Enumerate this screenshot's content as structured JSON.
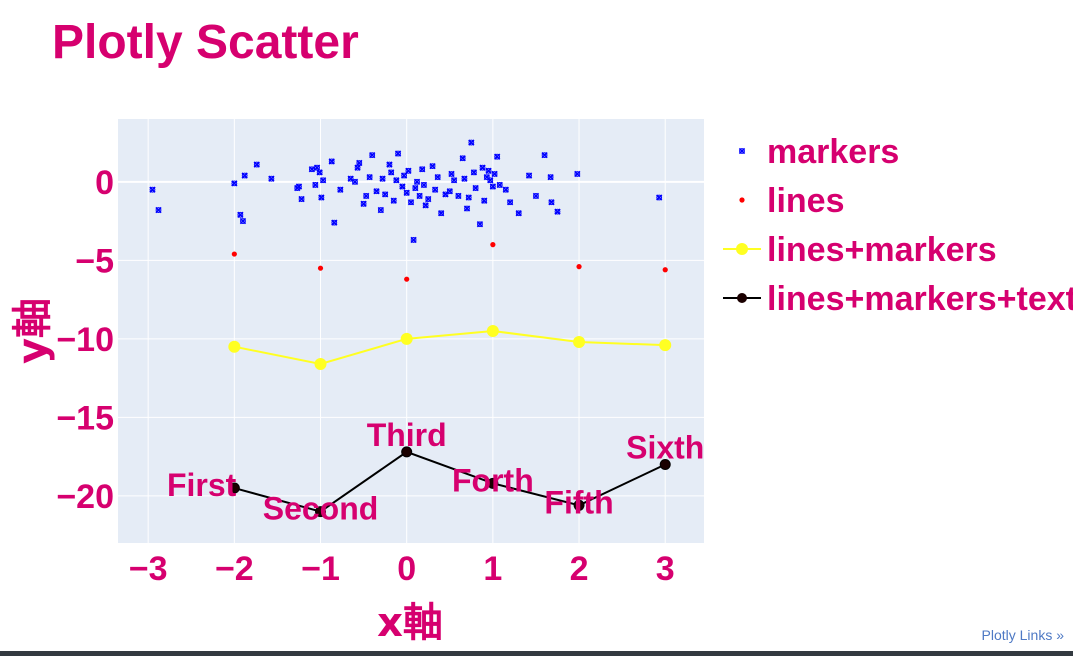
{
  "chart_data": {
    "type": "scatter",
    "title": "Plotly Scatter",
    "xlabel": "x軸",
    "ylabel": "y軸",
    "xlim": [
      -3.35,
      3.45
    ],
    "ylim": [
      -23,
      4
    ],
    "x_ticks": [
      -3,
      -2,
      -1,
      0,
      1,
      2,
      3
    ],
    "x_tick_labels": [
      "−3",
      "−2",
      "−1",
      "0",
      "1",
      "2",
      "3"
    ],
    "y_ticks": [
      0,
      -5,
      -10,
      -15,
      -20
    ],
    "y_tick_labels": [
      "0",
      "−5",
      "−10",
      "−15",
      "−20"
    ],
    "grid": true,
    "legend_position": "right",
    "series": [
      {
        "name": "markers",
        "mode": "markers",
        "color": "#0000ff",
        "x": [
          -2.95,
          -2.88,
          -2.0,
          -1.9,
          -1.93,
          -1.88,
          -1.74,
          -1.57,
          -1.27,
          -1.25,
          -1.22,
          -1.1,
          -1.06,
          -1.04,
          -1.01,
          -0.99,
          -0.97,
          -0.87,
          -0.84,
          -0.77,
          -0.65,
          -0.6,
          -0.57,
          -0.55,
          -0.5,
          -0.47,
          -0.43,
          -0.4,
          -0.35,
          -0.3,
          -0.28,
          -0.25,
          -0.2,
          -0.18,
          -0.15,
          -0.12,
          -0.1,
          -0.05,
          -0.03,
          0.0,
          0.02,
          0.05,
          0.08,
          0.1,
          0.12,
          0.15,
          0.18,
          0.2,
          0.22,
          0.25,
          0.3,
          0.33,
          0.36,
          0.4,
          0.45,
          0.5,
          0.52,
          0.55,
          0.6,
          0.65,
          0.67,
          0.7,
          0.72,
          0.75,
          0.78,
          0.8,
          0.85,
          0.88,
          0.9,
          0.93,
          0.95,
          0.97,
          1.0,
          1.02,
          1.05,
          1.08,
          1.15,
          1.2,
          1.3,
          1.42,
          1.5,
          1.6,
          1.67,
          1.68,
          1.75,
          1.98,
          2.93
        ],
        "y": [
          -0.5,
          -1.8,
          -0.1,
          -2.5,
          -2.1,
          0.4,
          1.1,
          0.2,
          -0.4,
          -0.3,
          -1.1,
          0.8,
          -0.2,
          0.9,
          0.6,
          -1.0,
          0.1,
          1.3,
          -2.6,
          -0.5,
          0.2,
          0.0,
          0.9,
          1.2,
          -1.4,
          -0.9,
          0.3,
          1.7,
          -0.6,
          -1.8,
          0.2,
          -0.8,
          1.1,
          0.6,
          -1.2,
          0.1,
          1.8,
          -0.3,
          0.4,
          -0.7,
          0.7,
          -1.3,
          -3.7,
          -0.4,
          0.0,
          -0.9,
          0.8,
          -0.2,
          -1.5,
          -1.1,
          1.0,
          -0.5,
          0.3,
          -2.0,
          -0.8,
          -0.6,
          0.5,
          0.1,
          -0.9,
          1.5,
          0.2,
          -1.7,
          -1.0,
          2.5,
          0.6,
          -0.4,
          -2.7,
          0.9,
          -1.2,
          0.3,
          0.7,
          0.1,
          -0.3,
          0.5,
          1.6,
          -0.2,
          -0.5,
          -1.3,
          -2.0,
          0.4,
          -0.9,
          1.7,
          0.3,
          -1.3,
          -1.9,
          0.5,
          -1.0
        ]
      },
      {
        "name": "lines",
        "mode": "markers",
        "color": "#ff0000",
        "x": [
          -2,
          -1,
          0,
          1,
          2,
          3
        ],
        "y": [
          -4.6,
          -5.5,
          -6.2,
          -4.0,
          -5.4,
          -5.6
        ]
      },
      {
        "name": "lines+markers",
        "mode": "lines+markers",
        "color": "#ffff22",
        "x": [
          -2,
          -1,
          0,
          1,
          2,
          3
        ],
        "y": [
          -10.5,
          -11.6,
          -10.0,
          -9.5,
          -10.2,
          -10.4
        ]
      },
      {
        "name": "lines+markers+text",
        "mode": "lines+markers+text",
        "color": "#000000",
        "x": [
          -2,
          -1,
          0,
          1,
          2,
          3
        ],
        "y": [
          -19.5,
          -21.0,
          -17.2,
          -19.2,
          -20.6,
          -18.0
        ],
        "text": [
          "First",
          "Second",
          "Third",
          "Forth",
          "Fifth",
          "Sixth"
        ],
        "text_position": [
          "top left",
          "bottom center",
          "top center",
          "bottom center",
          "bottom center",
          "top center"
        ]
      }
    ]
  },
  "footer": {
    "link_text": "Plotly Links »"
  },
  "colors": {
    "plot_bg": "#e5ecf6",
    "grid": "#ffffff",
    "text": "#d6006f",
    "link": "#4e79c4"
  }
}
